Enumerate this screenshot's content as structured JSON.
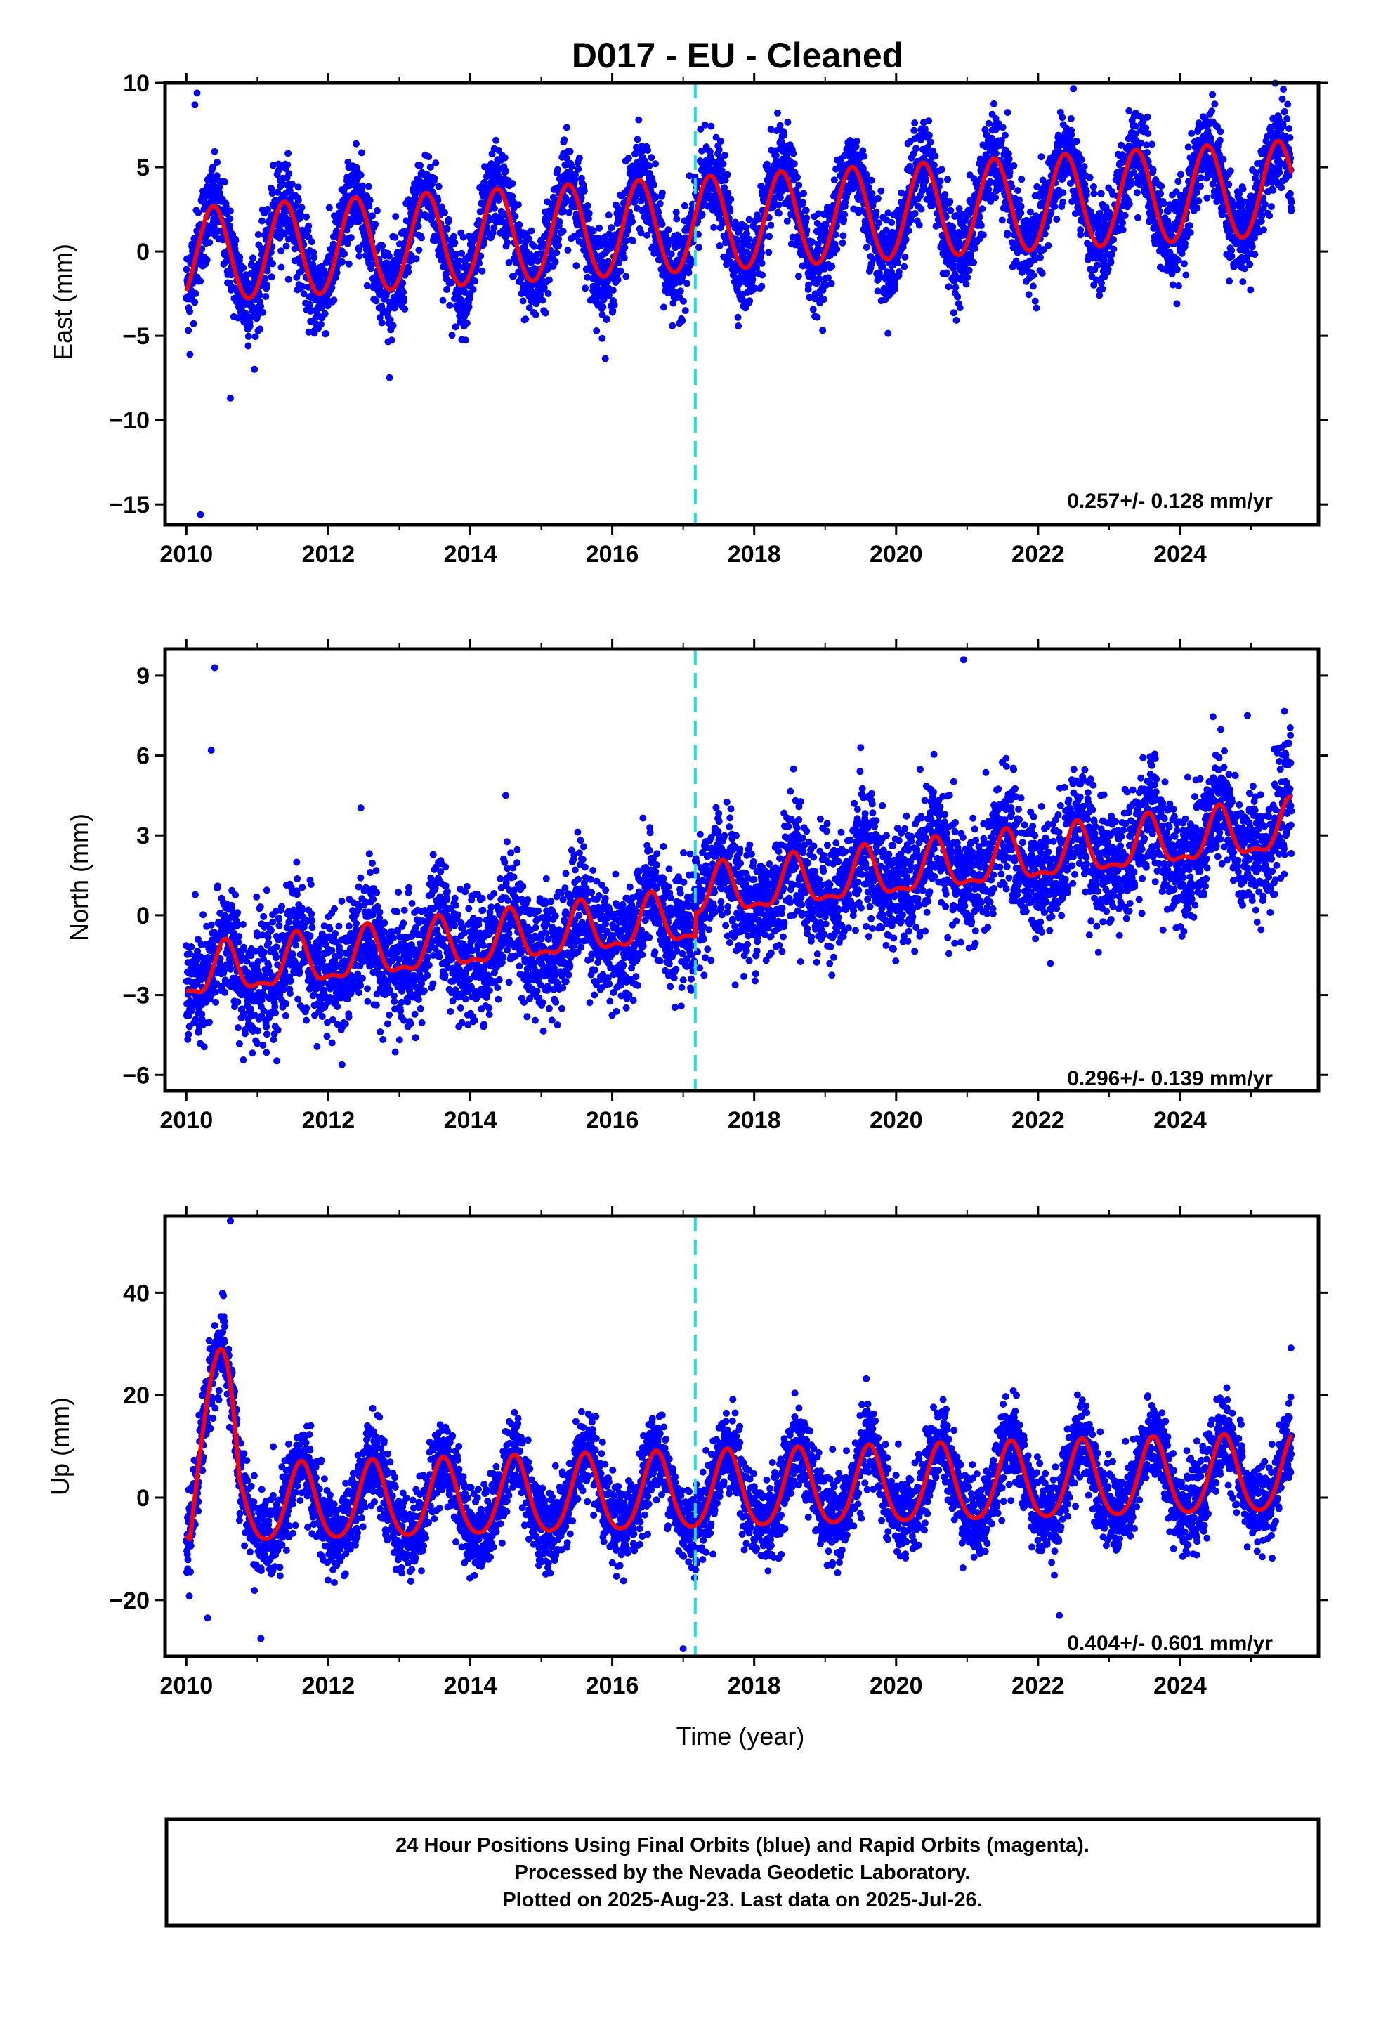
{
  "figure": {
    "title": "D017  - EU - Cleaned",
    "x_axis_title": "Time (year)",
    "footer_lines": [
      "24 Hour Positions Using Final Orbits (blue) and Rapid Orbits (magenta).",
      "Processed by the Nevada Geodetic Laboratory.",
      "Plotted on 2025-Aug-23. Last data on 2025-Jul-26."
    ]
  },
  "colors": {
    "points": "#0000ff",
    "model": "#ff0000",
    "offset_line": "#22dddd",
    "frame": "#000000"
  },
  "chart_data": [
    {
      "type": "scatter",
      "title": "D017  - EU - Cleaned",
      "xlabel": "",
      "ylabel": "East (mm)",
      "xlim": [
        2009.7,
        2025.95
      ],
      "ylim": [
        -16.2,
        10.0
      ],
      "x_ticks": [
        2010,
        2012,
        2014,
        2016,
        2018,
        2020,
        2022,
        2024
      ],
      "y_ticks": [
        -15,
        -10,
        -5,
        0,
        5,
        10
      ],
      "offset_epoch": 2017.17,
      "rate_text": "0.257+/- 0.128 mm/yr",
      "series": [
        {
          "marker": "dots",
          "color": "#0000ff",
          "sample_period_years": 0.00274
        },
        {
          "marker": "line",
          "color": "#ff0000"
        }
      ],
      "model": {
        "rate": 0.257,
        "intercept_at_2010": -0.3,
        "annual_amplitude": 2.8,
        "annual_peak": 0.38,
        "semiannual_amplitude": 0.1,
        "noise_sd": 1.3
      },
      "outliers": [
        [
          2010.12,
          8.7
        ],
        [
          2010.15,
          9.4
        ],
        [
          2010.2,
          -15.6
        ],
        [
          2010.62,
          -8.7
        ],
        [
          2010.05,
          -6.1
        ]
      ],
      "legend": "none",
      "grid": false
    },
    {
      "type": "scatter",
      "xlabel": "",
      "ylabel": "North (mm)",
      "xlim": [
        2009.7,
        2025.95
      ],
      "ylim": [
        -6.6,
        10.0
      ],
      "x_ticks": [
        2010,
        2012,
        2014,
        2016,
        2018,
        2020,
        2022,
        2024
      ],
      "y_ticks": [
        -6,
        -3,
        0,
        3,
        6,
        9
      ],
      "offset_epoch": 2017.17,
      "rate_text": "0.296+/- 0.139 mm/yr",
      "series": [
        {
          "marker": "dots",
          "color": "#0000ff",
          "sample_period_years": 0.00274
        },
        {
          "marker": "line",
          "color": "#ff0000"
        }
      ],
      "model": {
        "rate": 0.296,
        "intercept_at_2010": -2.3,
        "annual_amplitude": 0.9,
        "annual_peak": 0.55,
        "semiannual_amplitude": 0.35,
        "noise_sd": 1.1,
        "step_at_offset": 0.9
      },
      "outliers": [
        [
          2010.4,
          9.3
        ],
        [
          2010.35,
          6.2
        ],
        [
          2014.5,
          4.5
        ],
        [
          2019.5,
          6.3
        ],
        [
          2020.95,
          9.6
        ],
        [
          2024.95,
          7.5
        ]
      ],
      "legend": "none",
      "grid": false
    },
    {
      "type": "scatter",
      "xlabel": "Time (year)",
      "ylabel": "Up (mm)",
      "xlim": [
        2009.7,
        2025.95
      ],
      "ylim": [
        -31.0,
        55.0
      ],
      "x_ticks": [
        2010,
        2012,
        2014,
        2016,
        2018,
        2020,
        2022,
        2024
      ],
      "y_ticks": [
        -20,
        0,
        20,
        40
      ],
      "offset_epoch": 2017.17,
      "rate_text": "0.404+/- 0.601 mm/yr",
      "series": [
        {
          "marker": "dots",
          "color": "#0000ff",
          "sample_period_years": 0.00274
        },
        {
          "marker": "line",
          "color": "#ff0000"
        }
      ],
      "model": {
        "rate": 0.404,
        "intercept_at_2010": -2.0,
        "annual_amplitude": 7.5,
        "annual_peak": 0.62,
        "semiannual_amplitude": 1.0,
        "noise_sd": 4.0,
        "transient_2010": 28.0
      },
      "outliers": [
        [
          2010.62,
          54.0
        ],
        [
          2010.3,
          -23.5
        ],
        [
          2011.05,
          -27.5
        ],
        [
          2017.0,
          -29.5
        ],
        [
          2022.3,
          -23.0
        ]
      ],
      "legend": "none",
      "grid": false
    }
  ]
}
